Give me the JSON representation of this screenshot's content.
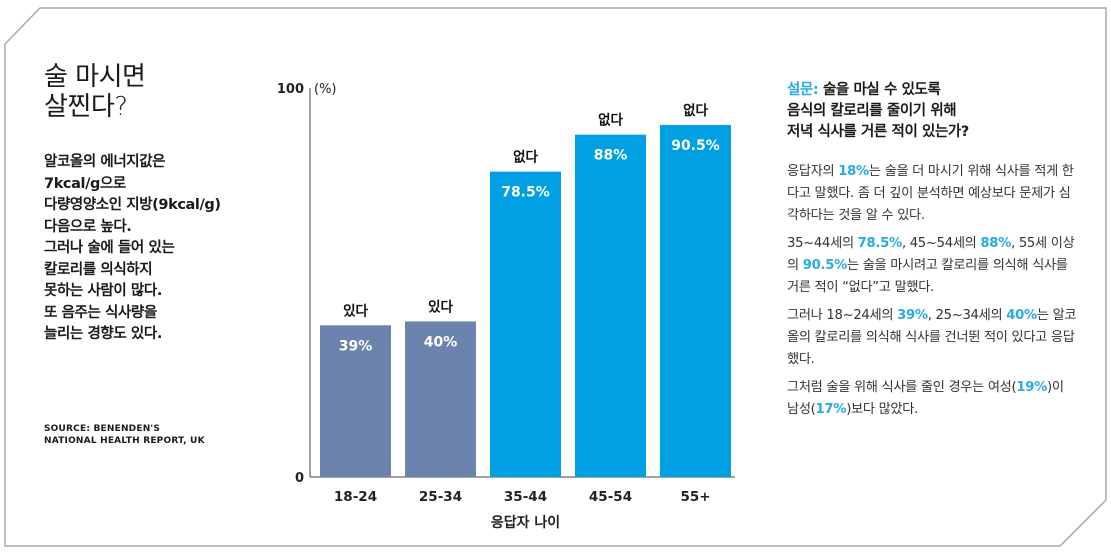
{
  "headline": {
    "line1": "술 마시면",
    "line2": "살찐다?"
  },
  "description": [
    "알코올의 에너지값은",
    "7kcal/g으로",
    "다량영양소인 지방(9kcal/g)",
    "다음으로 높다.",
    "그러나 술에 들어 있는",
    "칼로리를 의식하지",
    "못하는 사람이 많다.",
    "또 음주는 식사량을",
    "늘리는 경향도 있다."
  ],
  "source": {
    "line1": "SOURCE: BENENDEN'S",
    "line2": "NATIONAL HEALTH REPORT, UK"
  },
  "colors": {
    "accent": "#29aae2",
    "bar_yes": "#6c84ad",
    "bar_no": "#00a0e3"
  },
  "chart_data": {
    "type": "bar",
    "categories": [
      "18-24",
      "25-34",
      "35-44",
      "45-54",
      "55+"
    ],
    "values": [
      39,
      40,
      78.5,
      88,
      90.5
    ],
    "value_labels": [
      "39%",
      "40%",
      "78.5%",
      "88%",
      "90.5%"
    ],
    "bar_tags": [
      "있다",
      "있다",
      "없다",
      "없다",
      "없다"
    ],
    "bar_groups": [
      "yes",
      "yes",
      "no",
      "no",
      "no"
    ],
    "xlabel": "응답자 나이",
    "ylabel": "(%)",
    "ylim": [
      0,
      100
    ],
    "y_ticks": [
      "0",
      "100"
    ],
    "grid": false
  },
  "survey": {
    "question_prefix": "설문:",
    "question_line1": "술을 마실 수 있도록",
    "question_line2": "음식의 칼로리를 줄이기 위해",
    "question_line3": "저녁 식사를 거른 적이 있는가?",
    "p1": {
      "a": "응답자의 ",
      "h1": "18%",
      "b": "는 술을 더 마시기 위해 식사를 적게 한다고 말했다. 좀 더 깊이 분석하면 예상보다 문제가 심각하다는 것을 알 수 있다."
    },
    "p2": {
      "a": "35~44세의 ",
      "h1": "78.5%",
      "b": ", 45~54세의 ",
      "h2": "88%",
      "c": ", 55세 이상의 ",
      "h3": "90.5%",
      "d": "는 술을 마시려고 칼로리를 의식해 식사를 거른 적이 “없다”고 말했다."
    },
    "p3": {
      "a": "그러나 18~24세의 ",
      "h1": "39%",
      "b": ", 25~34세의 ",
      "h2": "40%",
      "c": "는 알코올의 칼로리를 의식해 식사를 건너뛴 적이 있다고 응답했다."
    },
    "p4": {
      "a": "그처럼 술을 위해 식사를 줄인 경우는 여성(",
      "h1": "19%",
      "b": ")이 남성(",
      "h2": "17%",
      "c": ")보다 많았다."
    }
  }
}
